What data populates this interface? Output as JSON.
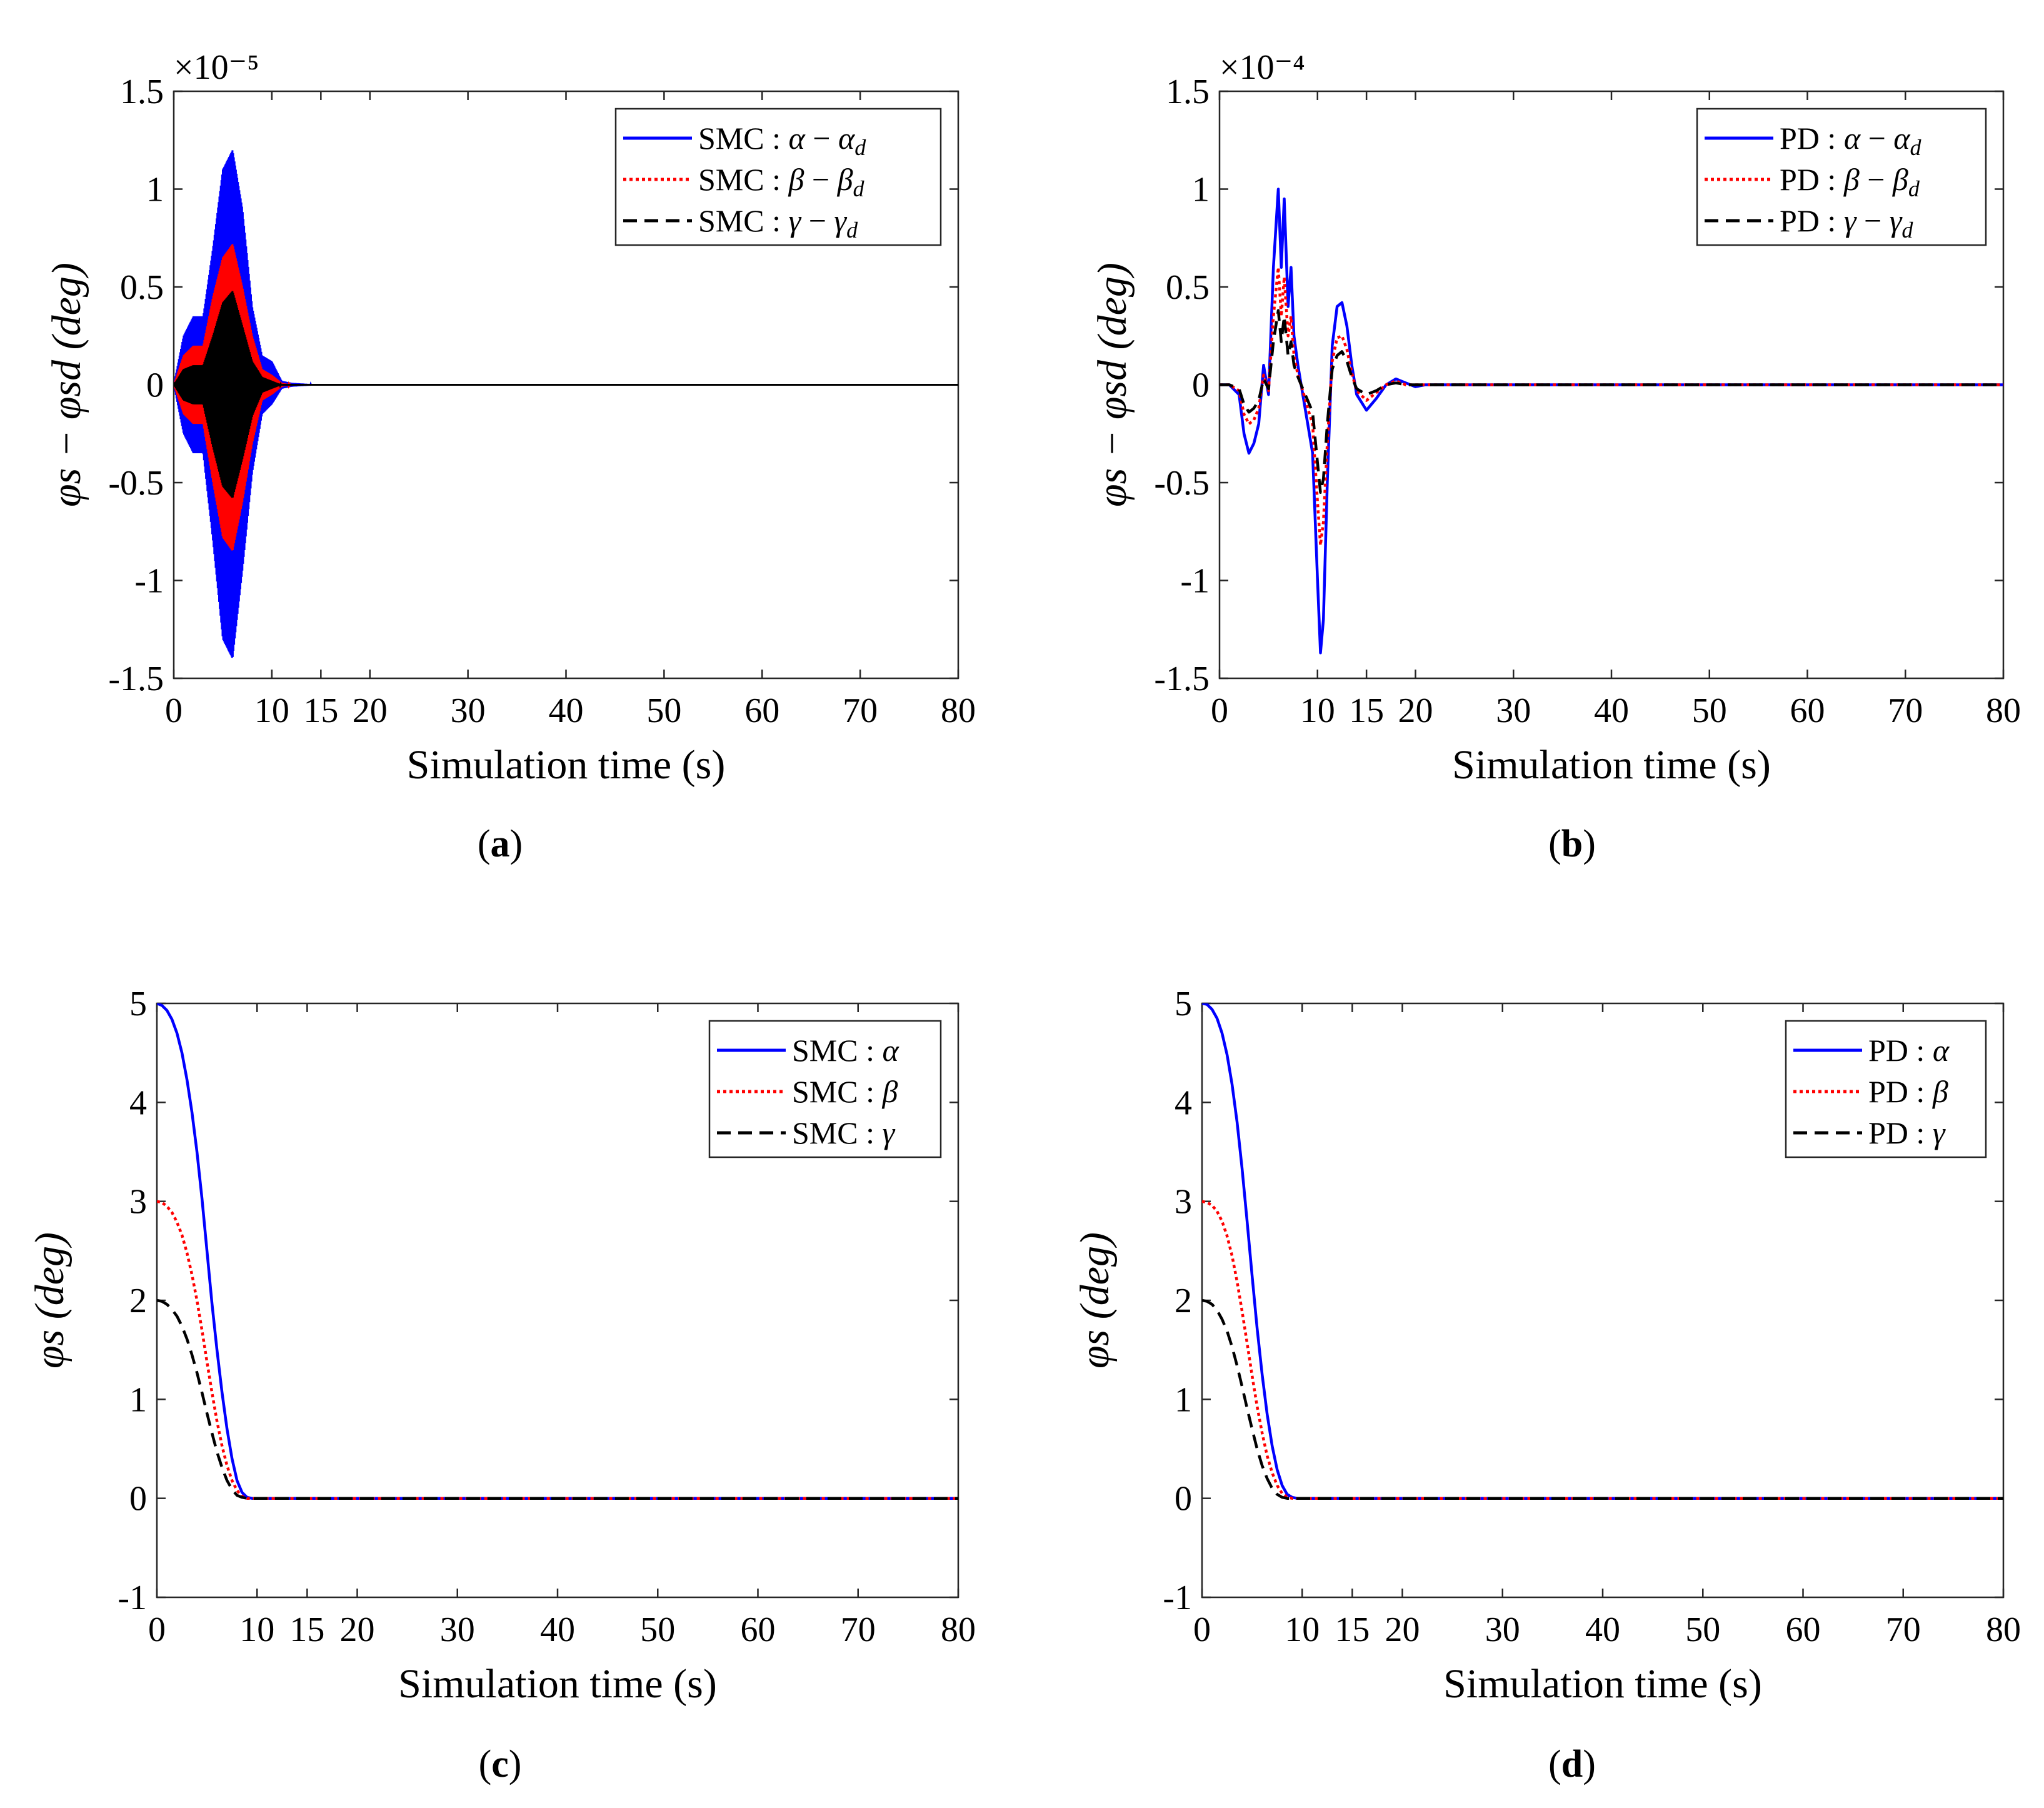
{
  "chart_data": [
    {
      "id": "a",
      "type": "line",
      "caption": "a",
      "exponent": "×10⁻⁵",
      "xlabel": "Simulation time  (s)",
      "ylabel": "φs − φsd (deg)",
      "xlim": [
        0,
        80
      ],
      "ylim": [
        -1.5,
        1.5
      ],
      "xticks": [
        0,
        10,
        15,
        20,
        30,
        40,
        50,
        60,
        70,
        80
      ],
      "yticks": [
        -1.5,
        -1,
        -0.5,
        0,
        0.5,
        1,
        1.5
      ],
      "ytick_labels": [
        "-1.5",
        "-1",
        "-0.5",
        "0",
        "0.5",
        "1",
        "1.5"
      ],
      "legend_position": "top-right",
      "series": [
        {
          "name": "SMC : α − αd",
          "color": "#0000ff",
          "style": "solid",
          "kind": "envelope",
          "x": [
            0,
            1,
            2,
            3,
            4,
            5,
            6,
            7,
            8,
            9,
            10,
            11,
            12,
            15,
            20,
            80
          ],
          "upper": [
            0,
            0.25,
            0.35,
            0.35,
            0.7,
            1.1,
            1.2,
            0.9,
            0.4,
            0.15,
            0.12,
            0.02,
            0.01,
            0.0,
            0.0,
            0.0
          ],
          "lower": [
            0,
            -0.25,
            -0.35,
            -0.35,
            -0.8,
            -1.3,
            -1.4,
            -0.95,
            -0.45,
            -0.15,
            -0.1,
            -0.02,
            -0.01,
            0.0,
            0.0,
            0.0
          ]
        },
        {
          "name": "SMC : β − βd",
          "color": "#ff0000",
          "style": "dotted",
          "kind": "envelope",
          "x": [
            0,
            1,
            2,
            3,
            4,
            5,
            6,
            7,
            8,
            9,
            10,
            11,
            12,
            15,
            20,
            80
          ],
          "upper": [
            0,
            0.15,
            0.2,
            0.2,
            0.45,
            0.65,
            0.72,
            0.5,
            0.25,
            0.08,
            0.05,
            0.01,
            0.0,
            0.0,
            0.0,
            0.0
          ],
          "lower": [
            0,
            -0.15,
            -0.2,
            -0.2,
            -0.5,
            -0.78,
            -0.85,
            -0.6,
            -0.3,
            -0.08,
            -0.05,
            -0.01,
            0.0,
            0.0,
            0.0,
            0.0
          ]
        },
        {
          "name": "SMC : γ − γd",
          "color": "#000000",
          "style": "dashed",
          "kind": "envelope",
          "x": [
            0,
            1,
            2,
            3,
            4,
            5,
            6,
            7,
            8,
            9,
            10,
            11,
            12,
            15,
            20,
            80
          ],
          "upper": [
            0,
            0.08,
            0.1,
            0.1,
            0.25,
            0.42,
            0.48,
            0.3,
            0.12,
            0.04,
            0.02,
            0.0,
            0.0,
            0.0,
            0.0,
            0.0
          ],
          "lower": [
            0,
            -0.08,
            -0.1,
            -0.1,
            -0.32,
            -0.52,
            -0.58,
            -0.38,
            -0.16,
            -0.04,
            -0.02,
            0.0,
            0.0,
            0.0,
            0.0,
            0.0
          ]
        }
      ]
    },
    {
      "id": "b",
      "type": "line",
      "caption": "b",
      "exponent": "×10⁻⁴",
      "xlabel": "Simulation time  (s)",
      "ylabel": "φs − φsd (deg)",
      "xlim": [
        0,
        80
      ],
      "ylim": [
        -1.5,
        1.5
      ],
      "xticks": [
        0,
        10,
        15,
        20,
        30,
        40,
        50,
        60,
        70,
        80
      ],
      "yticks": [
        -1.5,
        -1,
        -0.5,
        0,
        0.5,
        1,
        1.5
      ],
      "ytick_labels": [
        "-1.5",
        "-1",
        "-0.5",
        "0",
        "0.5",
        "1",
        "1.5"
      ],
      "legend_position": "top-right",
      "series": [
        {
          "name": "PD : α − αd",
          "color": "#0000ff",
          "style": "solid",
          "kind": "line",
          "x": [
            0,
            1,
            2,
            2.5,
            3,
            3.5,
            4,
            4.5,
            5,
            5.5,
            6,
            6.3,
            6.6,
            7,
            7.3,
            7.6,
            8,
            8.5,
            9,
            9.5,
            10,
            10.3,
            10.6,
            11,
            11.5,
            12,
            12.5,
            13,
            13.5,
            14,
            15,
            16,
            17,
            18,
            19,
            20,
            21,
            22,
            80
          ],
          "y": [
            0,
            0,
            -0.05,
            -0.25,
            -0.35,
            -0.3,
            -0.2,
            0.1,
            -0.05,
            0.6,
            1.0,
            0.6,
            0.95,
            0.4,
            0.6,
            0.25,
            0.1,
            -0.05,
            -0.2,
            -0.35,
            -1.0,
            -1.37,
            -1.2,
            -0.5,
            0.2,
            0.4,
            0.42,
            0.3,
            0.1,
            -0.05,
            -0.13,
            -0.07,
            0.0,
            0.03,
            0.01,
            -0.01,
            0.0,
            0.0,
            0.0
          ]
        },
        {
          "name": "PD : β − βd",
          "color": "#ff0000",
          "style": "dotted",
          "kind": "line",
          "x": [
            0,
            1,
            2,
            2.5,
            3,
            3.5,
            4,
            4.5,
            5,
            5.5,
            6,
            6.3,
            6.6,
            7,
            7.3,
            7.6,
            8,
            8.5,
            9,
            9.5,
            10,
            10.3,
            10.6,
            11,
            11.5,
            12,
            12.5,
            13,
            13.5,
            14,
            15,
            16,
            17,
            18,
            19,
            20,
            21,
            22,
            80
          ],
          "y": [
            0,
            0,
            -0.03,
            -0.15,
            -0.2,
            -0.18,
            -0.12,
            0.05,
            -0.03,
            0.35,
            0.6,
            0.35,
            0.55,
            0.25,
            0.35,
            0.15,
            0.05,
            -0.03,
            -0.12,
            -0.2,
            -0.6,
            -0.82,
            -0.7,
            -0.3,
            0.12,
            0.24,
            0.25,
            0.18,
            0.06,
            -0.03,
            -0.08,
            -0.04,
            0.0,
            0.02,
            0.0,
            0.0,
            0.0,
            0.0,
            0.0
          ]
        },
        {
          "name": "PD : γ − γd",
          "color": "#000000",
          "style": "dashed",
          "kind": "line",
          "x": [
            0,
            1,
            2,
            2.5,
            3,
            3.5,
            4,
            4.5,
            5,
            5.5,
            6,
            6.3,
            6.6,
            7,
            7.3,
            7.6,
            8,
            8.5,
            9,
            9.5,
            10,
            10.3,
            10.6,
            11,
            11.5,
            12,
            12.5,
            13,
            13.5,
            14,
            15,
            16,
            17,
            18,
            19,
            20,
            21,
            22,
            80
          ],
          "y": [
            0,
            0,
            -0.02,
            -0.1,
            -0.14,
            -0.12,
            -0.08,
            0.03,
            -0.02,
            0.22,
            0.38,
            0.22,
            0.35,
            0.15,
            0.22,
            0.1,
            0.04,
            -0.02,
            -0.08,
            -0.14,
            -0.4,
            -0.55,
            -0.48,
            -0.2,
            0.08,
            0.15,
            0.17,
            0.12,
            0.04,
            -0.02,
            -0.05,
            -0.03,
            0.0,
            0.01,
            0.0,
            0.0,
            0.0,
            0.0,
            0.0
          ]
        }
      ]
    },
    {
      "id": "c",
      "type": "line",
      "caption": "c",
      "exponent": "",
      "xlabel": "Simulation time  (s)",
      "ylabel": "φs (deg)",
      "xlim": [
        0,
        80
      ],
      "ylim": [
        -1,
        5
      ],
      "xticks": [
        0,
        10,
        15,
        20,
        30,
        40,
        50,
        60,
        70,
        80
      ],
      "yticks": [
        -1,
        0,
        1,
        2,
        3,
        4,
        5
      ],
      "ytick_labels": [
        "-1",
        "0",
        "1",
        "2",
        "3",
        "4",
        "5"
      ],
      "legend_position": "top-right",
      "series": [
        {
          "name": "SMC : α",
          "color": "#0000ff",
          "style": "solid",
          "kind": "line",
          "x": [
            0,
            0.5,
            1,
            1.5,
            2,
            2.5,
            3,
            3.5,
            4,
            4.5,
            5,
            5.5,
            6,
            6.5,
            7,
            7.5,
            8,
            8.5,
            9,
            9.5,
            10,
            80
          ],
          "y": [
            5,
            4.98,
            4.93,
            4.84,
            4.7,
            4.5,
            4.23,
            3.9,
            3.5,
            3.03,
            2.5,
            1.97,
            1.5,
            1.07,
            0.7,
            0.4,
            0.18,
            0.06,
            0.01,
            0,
            0,
            0
          ]
        },
        {
          "name": "SMC : β",
          "color": "#ff0000",
          "style": "dotted",
          "kind": "line",
          "x": [
            0,
            0.5,
            1,
            1.5,
            2,
            2.5,
            3,
            3.5,
            4,
            4.5,
            5,
            5.5,
            6,
            6.5,
            7,
            7.5,
            8,
            8.5,
            9,
            9.5,
            10,
            80
          ],
          "y": [
            3,
            2.99,
            2.95,
            2.89,
            2.79,
            2.66,
            2.48,
            2.26,
            2.0,
            1.7,
            1.38,
            1.07,
            0.78,
            0.53,
            0.33,
            0.18,
            0.08,
            0.02,
            0.0,
            0,
            0,
            0
          ]
        },
        {
          "name": "SMC : γ",
          "color": "#000000",
          "style": "dashed",
          "kind": "line",
          "x": [
            0,
            0.5,
            1,
            1.5,
            2,
            2.5,
            3,
            3.5,
            4,
            4.5,
            5,
            5.5,
            6,
            6.5,
            7,
            7.5,
            8,
            8.5,
            9,
            9.5,
            10,
            80
          ],
          "y": [
            2,
            1.99,
            1.96,
            1.91,
            1.84,
            1.74,
            1.61,
            1.45,
            1.27,
            1.07,
            0.86,
            0.66,
            0.47,
            0.31,
            0.18,
            0.09,
            0.03,
            0.01,
            0.0,
            0,
            0,
            0
          ]
        }
      ]
    },
    {
      "id": "d",
      "type": "line",
      "caption": "d",
      "exponent": "",
      "xlabel": "Simulation time  (s)",
      "ylabel": "φs (deg)",
      "xlim": [
        0,
        80
      ],
      "ylim": [
        -1,
        5
      ],
      "xticks": [
        0,
        10,
        15,
        20,
        30,
        40,
        50,
        60,
        70,
        80
      ],
      "yticks": [
        -1,
        0,
        1,
        2,
        3,
        4,
        5
      ],
      "ytick_labels": [
        "-1",
        "0",
        "1",
        "2",
        "3",
        "4",
        "5"
      ],
      "legend_position": "top-right",
      "series": [
        {
          "name": "PD : α",
          "color": "#0000ff",
          "style": "solid",
          "kind": "line",
          "x": [
            0,
            0.5,
            1,
            1.5,
            2,
            2.5,
            3,
            3.5,
            4,
            4.5,
            5,
            5.5,
            6,
            6.5,
            7,
            7.5,
            8,
            8.5,
            9,
            9.5,
            10,
            80
          ],
          "y": [
            5,
            4.99,
            4.94,
            4.85,
            4.7,
            4.48,
            4.18,
            3.8,
            3.33,
            2.8,
            2.25,
            1.72,
            1.25,
            0.85,
            0.53,
            0.29,
            0.13,
            0.04,
            0.01,
            0,
            0,
            0
          ]
        },
        {
          "name": "PD : β",
          "color": "#ff0000",
          "style": "dotted",
          "kind": "line",
          "x": [
            0,
            0.5,
            1,
            1.5,
            2,
            2.5,
            3,
            3.5,
            4,
            4.5,
            5,
            5.5,
            6,
            6.5,
            7,
            7.5,
            8,
            8.5,
            9,
            9.5,
            10,
            80
          ],
          "y": [
            3,
            2.99,
            2.96,
            2.9,
            2.8,
            2.65,
            2.45,
            2.19,
            1.89,
            1.57,
            1.24,
            0.93,
            0.66,
            0.43,
            0.26,
            0.13,
            0.05,
            0.01,
            0,
            0,
            0,
            0
          ]
        },
        {
          "name": "PD : γ",
          "color": "#000000",
          "style": "dashed",
          "kind": "line",
          "x": [
            0,
            0.5,
            1,
            1.5,
            2,
            2.5,
            3,
            3.5,
            4,
            4.5,
            5,
            5.5,
            6,
            6.5,
            7,
            7.5,
            8,
            8.5,
            9,
            9.5,
            10,
            80
          ],
          "y": [
            2,
            1.99,
            1.96,
            1.9,
            1.81,
            1.69,
            1.53,
            1.34,
            1.13,
            0.91,
            0.7,
            0.5,
            0.33,
            0.2,
            0.1,
            0.04,
            0.01,
            0,
            0,
            0,
            0,
            0
          ]
        }
      ]
    }
  ]
}
